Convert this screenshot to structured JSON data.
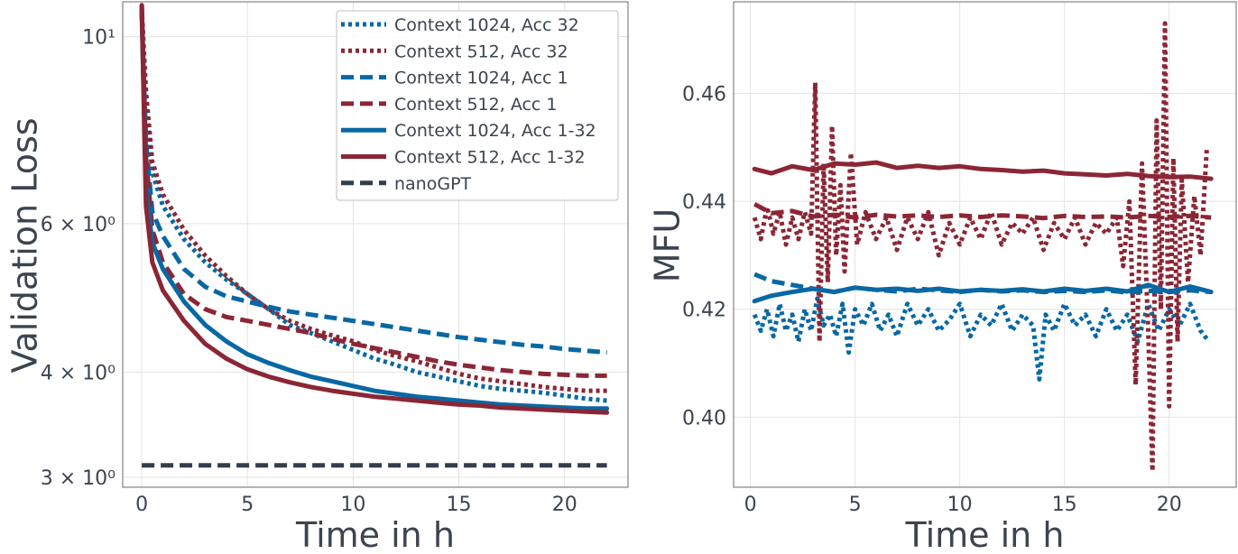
{
  "chart_data": [
    {
      "type": "line",
      "xlabel": "Time in h",
      "ylabel": "Validation Loss",
      "yscale": "log",
      "xlim": [
        -0.9,
        23.0
      ],
      "ylim": [
        2.92,
        11.0
      ],
      "xticks": [
        0,
        5,
        10,
        15,
        20
      ],
      "xtick_labels": [
        "0",
        "5",
        "10",
        "15",
        "20"
      ],
      "yticks": [
        3,
        4,
        6,
        10
      ],
      "ytick_labels": [
        "3 × 10⁰",
        "4 × 10⁰",
        "6 × 10⁰",
        "10¹"
      ],
      "grid": true,
      "legend": "top-right",
      "series": [
        {
          "name": "Context 1024, Acc 32",
          "color": "#0868a4",
          "dash": "dotted",
          "x": [
            0,
            0.2,
            0.5,
            1,
            2,
            3,
            4,
            5,
            6,
            7,
            8,
            9,
            10,
            11,
            12,
            13,
            14,
            15,
            16,
            17,
            18,
            19,
            20,
            21,
            22
          ],
          "y": [
            10.6,
            8.3,
            6.9,
            6.3,
            5.75,
            5.4,
            5.15,
            4.95,
            4.75,
            4.55,
            4.45,
            4.35,
            4.25,
            4.15,
            4.08,
            4.0,
            3.95,
            3.9,
            3.85,
            3.82,
            3.8,
            3.78,
            3.75,
            3.72,
            3.7
          ]
        },
        {
          "name": "Context 512, Acc 32",
          "color": "#8b2635",
          "dash": "dotted",
          "x": [
            0,
            0.2,
            0.5,
            1,
            2,
            3,
            4,
            5,
            6,
            7,
            8,
            9,
            10,
            11,
            12,
            13,
            14,
            15,
            16,
            17,
            18,
            19,
            20,
            21,
            22
          ],
          "y": [
            10.8,
            8.6,
            7.1,
            6.5,
            5.9,
            5.5,
            5.2,
            4.95,
            4.75,
            4.6,
            4.5,
            4.42,
            4.35,
            4.25,
            4.18,
            4.12,
            4.05,
            3.98,
            3.93,
            3.9,
            3.87,
            3.84,
            3.82,
            3.8,
            3.8
          ]
        },
        {
          "name": "Context 1024, Acc 1",
          "color": "#0868a4",
          "dash": "dashed",
          "x": [
            0,
            0.2,
            0.5,
            1,
            2,
            3,
            4,
            5,
            6,
            7,
            8,
            9,
            10,
            11,
            12,
            13,
            14,
            15,
            16,
            17,
            18,
            19,
            20,
            21,
            22
          ],
          "y": [
            10.7,
            7.5,
            6.2,
            5.8,
            5.3,
            5.05,
            4.92,
            4.85,
            4.78,
            4.72,
            4.68,
            4.64,
            4.6,
            4.56,
            4.52,
            4.48,
            4.44,
            4.4,
            4.37,
            4.34,
            4.31,
            4.29,
            4.26,
            4.24,
            4.22
          ]
        },
        {
          "name": "Context 512, Acc 1",
          "color": "#8b2635",
          "dash": "dashed",
          "x": [
            0,
            0.2,
            0.5,
            1,
            2,
            3,
            4,
            5,
            6,
            7,
            8,
            9,
            10,
            11,
            12,
            13,
            14,
            15,
            16,
            17,
            18,
            19,
            20,
            21,
            22
          ],
          "y": [
            10.9,
            7.2,
            5.9,
            5.4,
            4.95,
            4.75,
            4.65,
            4.6,
            4.55,
            4.5,
            4.45,
            4.38,
            4.32,
            4.27,
            4.22,
            4.17,
            4.12,
            4.08,
            4.05,
            4.02,
            4.0,
            3.98,
            3.97,
            3.96,
            3.96
          ]
        },
        {
          "name": "Context 1024, Acc 1-32",
          "color": "#0868a4",
          "dash": "solid",
          "x": [
            0,
            0.2,
            0.5,
            1,
            2,
            3,
            4,
            5,
            6,
            7,
            8,
            9,
            10,
            11,
            12,
            13,
            14,
            15,
            16,
            17,
            18,
            19,
            20,
            21,
            22
          ],
          "y": [
            10.7,
            6.6,
            5.7,
            5.3,
            4.85,
            4.55,
            4.35,
            4.2,
            4.1,
            4.02,
            3.95,
            3.9,
            3.85,
            3.8,
            3.77,
            3.74,
            3.72,
            3.7,
            3.68,
            3.66,
            3.65,
            3.64,
            3.63,
            3.62,
            3.62
          ]
        },
        {
          "name": "Context 512, Acc 1-32",
          "color": "#8b2635",
          "dash": "solid",
          "x": [
            0,
            0.2,
            0.5,
            1,
            2,
            3,
            4,
            5,
            6,
            7,
            8,
            9,
            10,
            11,
            12,
            13,
            14,
            15,
            16,
            17,
            18,
            19,
            20,
            21,
            22
          ],
          "y": [
            10.9,
            6.3,
            5.4,
            5.0,
            4.6,
            4.32,
            4.15,
            4.03,
            3.95,
            3.89,
            3.84,
            3.8,
            3.77,
            3.74,
            3.72,
            3.7,
            3.68,
            3.66,
            3.65,
            3.63,
            3.62,
            3.61,
            3.6,
            3.59,
            3.58
          ]
        },
        {
          "name": "nanoGPT",
          "color": "#343e4b",
          "dash": "dashed",
          "x": [
            0,
            22
          ],
          "y": [
            3.1,
            3.1
          ]
        }
      ]
    },
    {
      "type": "line",
      "xlabel": "Time in h",
      "ylabel": "MFU",
      "xlim": [
        -0.8,
        23.2
      ],
      "ylim": [
        0.387,
        0.477
      ],
      "xticks": [
        0,
        5,
        10,
        15,
        20
      ],
      "xtick_labels": [
        "0",
        "5",
        "10",
        "15",
        "20"
      ],
      "yticks": [
        0.4,
        0.42,
        0.44,
        0.46
      ],
      "ytick_labels": [
        "0.40",
        "0.42",
        "0.44",
        "0.46"
      ],
      "grid": true,
      "series": [
        {
          "name": "Context 1024, Acc 32",
          "color": "#0868a4",
          "dash": "dotted",
          "x": [
            0.2,
            0.5,
            0.8,
            1.1,
            1.4,
            1.7,
            2.0,
            2.3,
            2.6,
            2.9,
            3.2,
            3.5,
            3.8,
            4.1,
            4.4,
            4.7,
            5.0,
            5.4,
            5.8,
            6.2,
            6.6,
            7.0,
            7.5,
            8.0,
            8.5,
            9.0,
            9.5,
            10.0,
            10.5,
            11.0,
            11.5,
            12.0,
            12.5,
            13.0,
            13.5,
            13.8,
            14.1,
            14.5,
            15.0,
            15.5,
            16.0,
            16.5,
            17.0,
            17.5,
            18.0,
            18.5,
            19.0,
            19.5,
            20.0,
            20.5,
            21.0,
            21.5,
            21.9
          ],
          "y": [
            0.419,
            0.416,
            0.42,
            0.415,
            0.421,
            0.416,
            0.419,
            0.414,
            0.42,
            0.416,
            0.422,
            0.417,
            0.419,
            0.415,
            0.421,
            0.412,
            0.42,
            0.417,
            0.421,
            0.416,
            0.419,
            0.415,
            0.421,
            0.417,
            0.42,
            0.416,
            0.418,
            0.421,
            0.415,
            0.419,
            0.417,
            0.421,
            0.416,
            0.419,
            0.417,
            0.407,
            0.419,
            0.416,
            0.421,
            0.417,
            0.419,
            0.415,
            0.42,
            0.416,
            0.419,
            0.414,
            0.421,
            0.416,
            0.42,
            0.417,
            0.421,
            0.416,
            0.414
          ]
        },
        {
          "name": "Context 512, Acc 32",
          "color": "#8b2635",
          "dash": "dotted",
          "x": [
            0.2,
            0.5,
            0.8,
            1.1,
            1.4,
            1.7,
            2.0,
            2.3,
            2.6,
            2.9,
            3.1,
            3.3,
            3.5,
            3.7,
            3.9,
            4.1,
            4.3,
            4.5,
            4.8,
            5.1,
            5.5,
            6.0,
            6.5,
            7.0,
            7.5,
            8.0,
            8.5,
            9.0,
            9.5,
            10.0,
            10.5,
            11.0,
            11.5,
            12.0,
            12.5,
            13.0,
            13.5,
            14.0,
            14.5,
            15.0,
            15.5,
            16.0,
            16.5,
            17.0,
            17.5,
            17.8,
            18.1,
            18.4,
            18.7,
            19.0,
            19.2,
            19.4,
            19.6,
            19.8,
            20.0,
            20.2,
            20.4,
            20.6,
            20.9,
            21.2,
            21.5,
            21.8
          ],
          "y": [
            0.437,
            0.433,
            0.439,
            0.434,
            0.438,
            0.432,
            0.437,
            0.433,
            0.438,
            0.434,
            0.462,
            0.414,
            0.447,
            0.425,
            0.454,
            0.43,
            0.443,
            0.427,
            0.449,
            0.432,
            0.438,
            0.433,
            0.437,
            0.431,
            0.437,
            0.433,
            0.438,
            0.43,
            0.436,
            0.432,
            0.437,
            0.433,
            0.438,
            0.432,
            0.436,
            0.434,
            0.437,
            0.431,
            0.436,
            0.433,
            0.437,
            0.432,
            0.436,
            0.434,
            0.437,
            0.428,
            0.44,
            0.406,
            0.447,
            0.416,
            0.39,
            0.455,
            0.42,
            0.473,
            0.402,
            0.448,
            0.414,
            0.444,
            0.425,
            0.441,
            0.43,
            0.45
          ]
        },
        {
          "name": "Context 1024, Acc 1",
          "color": "#0868a4",
          "dash": "dashed",
          "x": [
            0.2,
            1,
            2,
            3,
            4,
            5,
            6,
            7,
            8,
            9,
            10,
            11,
            12,
            13,
            14,
            15,
            16,
            17,
            18,
            19,
            20,
            21,
            22
          ],
          "y": [
            0.4265,
            0.4252,
            0.4245,
            0.4238,
            0.4232,
            0.424,
            0.4236,
            0.4233,
            0.4238,
            0.4235,
            0.4232,
            0.4236,
            0.4233,
            0.4235,
            0.4232,
            0.4234,
            0.4232,
            0.4235,
            0.4231,
            0.4234,
            0.4232,
            0.4235,
            0.4232
          ]
        },
        {
          "name": "Context 512, Acc 1",
          "color": "#8b2635",
          "dash": "dashed",
          "x": [
            0.2,
            1,
            2,
            3,
            4,
            5,
            6,
            7,
            8,
            9,
            10,
            11,
            12,
            13,
            14,
            15,
            16,
            17,
            18,
            19,
            20,
            21,
            22
          ],
          "y": [
            0.4395,
            0.4378,
            0.4382,
            0.4372,
            0.4375,
            0.437,
            0.4375,
            0.4372,
            0.4374,
            0.4371,
            0.4374,
            0.4371,
            0.4374,
            0.4372,
            0.4369,
            0.4373,
            0.4371,
            0.4372,
            0.437,
            0.4373,
            0.4371,
            0.4373,
            0.437
          ]
        },
        {
          "name": "Context 1024, Acc 1-32",
          "color": "#0868a4",
          "dash": "solid",
          "x": [
            0.2,
            1,
            2,
            3,
            4,
            5,
            6,
            7,
            8,
            9,
            10,
            11,
            12,
            13,
            14,
            15,
            16,
            17,
            18,
            19,
            20,
            21,
            22
          ],
          "y": [
            0.4215,
            0.4225,
            0.4232,
            0.4238,
            0.4232,
            0.424,
            0.4236,
            0.4238,
            0.4234,
            0.4238,
            0.4233,
            0.4236,
            0.4234,
            0.4237,
            0.4233,
            0.4238,
            0.4234,
            0.4238,
            0.4233,
            0.4245,
            0.4232,
            0.4242,
            0.4232
          ]
        },
        {
          "name": "Context 512, Acc 1-32",
          "color": "#8b2635",
          "dash": "solid",
          "x": [
            0.2,
            1,
            2,
            3,
            4,
            5,
            6,
            7,
            8,
            9,
            10,
            11,
            12,
            13,
            14,
            15,
            16,
            17,
            18,
            19,
            20,
            21,
            22
          ],
          "y": [
            0.446,
            0.4452,
            0.4465,
            0.4458,
            0.447,
            0.4468,
            0.4472,
            0.4462,
            0.4466,
            0.4462,
            0.4465,
            0.446,
            0.4458,
            0.4455,
            0.4457,
            0.4452,
            0.445,
            0.4448,
            0.4451,
            0.4447,
            0.4445,
            0.4446,
            0.4442
          ]
        }
      ]
    }
  ]
}
